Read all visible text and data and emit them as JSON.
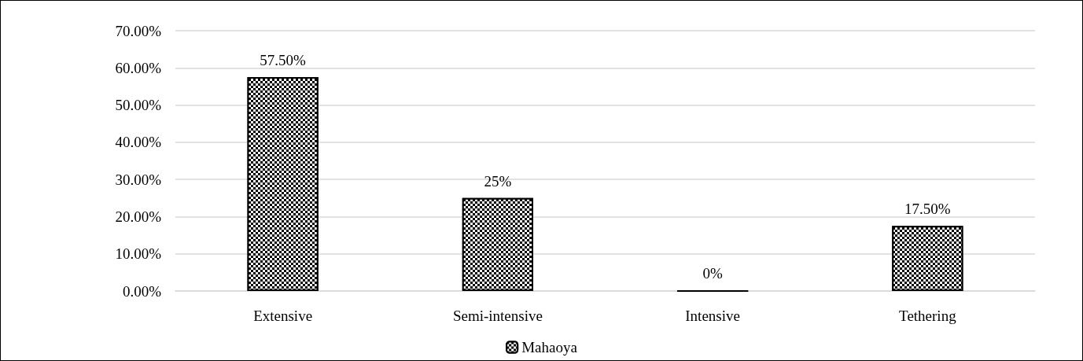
{
  "chart_data": {
    "type": "bar",
    "categories": [
      "Extensive",
      "Semi-intensive",
      "Intensive",
      "Tethering"
    ],
    "series": [
      {
        "name": "Mahaoya",
        "color": "#000000",
        "values": [
          57.5,
          25,
          0,
          17.5
        ],
        "value_labels": [
          "57.50%",
          "25%",
          "0%",
          "17.50%"
        ]
      }
    ],
    "ylim": [
      0,
      70
    ],
    "yticks": [
      {
        "value": 0,
        "label": "0.00%"
      },
      {
        "value": 10,
        "label": "10.00%"
      },
      {
        "value": 20,
        "label": "20.00%"
      },
      {
        "value": 30,
        "label": "30.00%"
      },
      {
        "value": 40,
        "label": "40.00%"
      },
      {
        "value": 50,
        "label": "50.00%"
      },
      {
        "value": 60,
        "label": "60.00%"
      },
      {
        "value": 70,
        "label": "70.00%"
      }
    ],
    "grid": "y",
    "legend": "bottom"
  }
}
